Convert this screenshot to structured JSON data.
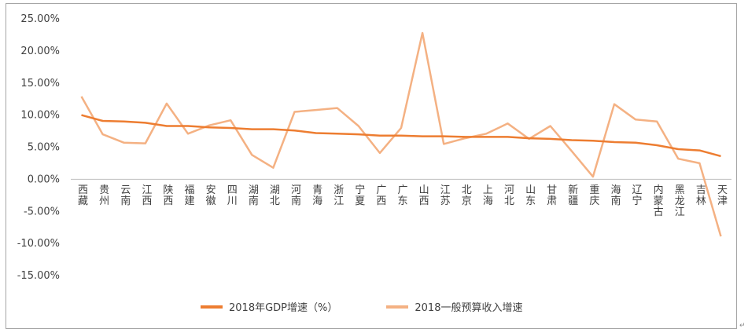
{
  "chart_data": {
    "type": "line",
    "categories": [
      "西藏",
      "贵州",
      "云南",
      "江西",
      "陕西",
      "福建",
      "安徽",
      "四川",
      "湖南",
      "湖北",
      "河南",
      "青海",
      "浙江",
      "宁夏",
      "广西",
      "广东",
      "山西",
      "江苏",
      "北京",
      "上海",
      "河北",
      "山东",
      "甘肃",
      "新疆",
      "重庆",
      "海南",
      "辽宁",
      "内蒙古",
      "黑龙江",
      "吉林",
      "天津"
    ],
    "series": [
      {
        "name": "2018年GDP增速（%）",
        "color": "#ed7d31",
        "values": [
          10.0,
          9.1,
          9.0,
          8.8,
          8.3,
          8.3,
          8.1,
          8.0,
          7.8,
          7.8,
          7.6,
          7.2,
          7.1,
          7.0,
          6.8,
          6.8,
          6.7,
          6.7,
          6.6,
          6.6,
          6.6,
          6.4,
          6.3,
          6.1,
          6.0,
          5.8,
          5.7,
          5.3,
          4.7,
          4.5,
          3.6
        ]
      },
      {
        "name": "2018一般预算收入增速",
        "color": "#f4b183",
        "values": [
          12.9,
          7.0,
          5.7,
          5.6,
          11.8,
          7.1,
          8.4,
          9.2,
          3.8,
          1.8,
          10.5,
          10.8,
          11.1,
          8.3,
          4.1,
          8.0,
          22.8,
          5.5,
          6.4,
          7.1,
          8.7,
          6.3,
          8.3,
          4.4,
          0.4,
          11.7,
          9.3,
          9.0,
          3.2,
          2.5,
          -8.9
        ]
      }
    ],
    "ylim": [
      -15,
      25
    ],
    "yticks": [
      -15,
      -10,
      -5,
      0,
      5,
      10,
      15,
      20,
      25
    ],
    "ytick_labels": [
      "-15.00%",
      "-10.00%",
      "-5.00%",
      "0.00%",
      "5.00%",
      "10.00%",
      "15.00%",
      "20.00%",
      "25.00%"
    ],
    "grid": false,
    "legend_position": "bottom"
  },
  "legend": {
    "item1": "2018年GDP增速（%）",
    "item2": "2018一般预算收入增速"
  },
  "corner_mark": "↵"
}
